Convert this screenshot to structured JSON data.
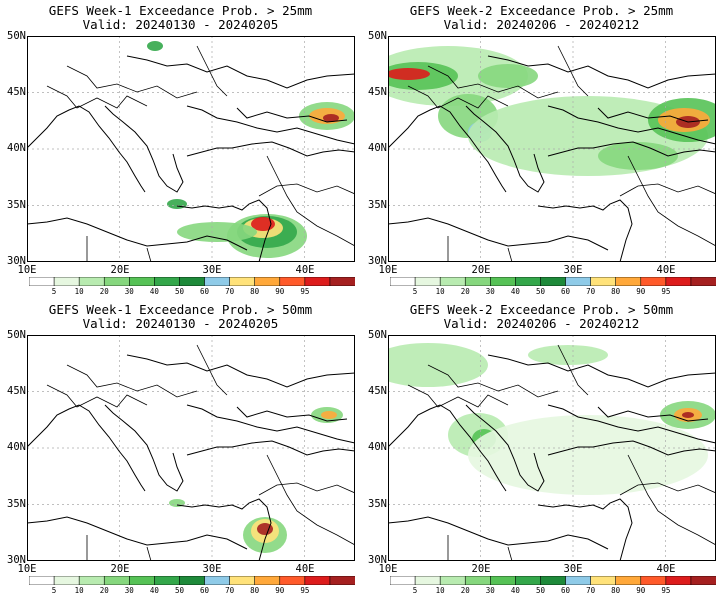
{
  "panels": [
    {
      "title_line1": "GEFS Week-1 Exceedance Prob. > 25mm",
      "title_line2": "Valid: 20240130 - 20240205",
      "y_ticks": [
        "50N",
        "45N",
        "40N",
        "35N",
        "30N"
      ],
      "x_ticks": [
        "10E",
        "20E",
        "30E",
        "40E"
      ]
    },
    {
      "title_line1": "GEFS Week-2 Exceedance Prob. > 25mm",
      "title_line2": "Valid: 20240206 - 20240212",
      "y_ticks": [
        "50N",
        "45N",
        "40N",
        "35N",
        "30N"
      ],
      "x_ticks": [
        "10E",
        "20E",
        "30E",
        "40E"
      ]
    },
    {
      "title_line1": "GEFS Week-1 Exceedance Prob. > 50mm",
      "title_line2": "Valid: 20240130 - 20240205",
      "y_ticks": [
        "50N",
        "45N",
        "40N",
        "35N",
        "30N"
      ],
      "x_ticks": [
        "10E",
        "20E",
        "30E",
        "40E"
      ]
    },
    {
      "title_line1": "GEFS Week-2 Exceedance Prob. > 50mm",
      "title_line2": "Valid: 20240206 - 20240212",
      "y_ticks": [
        "50N",
        "45N",
        "40N",
        "35N",
        "30N"
      ],
      "x_ticks": [
        "10E",
        "20E",
        "30E",
        "40E"
      ]
    }
  ],
  "colorbar": {
    "labels": [
      "5",
      "10",
      "20",
      "30",
      "40",
      "50",
      "60",
      "70",
      "80",
      "90",
      "95"
    ],
    "colors": [
      "#ffffff",
      "#e6f7e0",
      "#b8ebb0",
      "#86d77e",
      "#56c256",
      "#33a74a",
      "#1e8a3a",
      "#8fcbe8",
      "#ffe27a",
      "#ffa83a",
      "#ff5a2a",
      "#dd1c1c",
      "#a52020"
    ]
  }
}
